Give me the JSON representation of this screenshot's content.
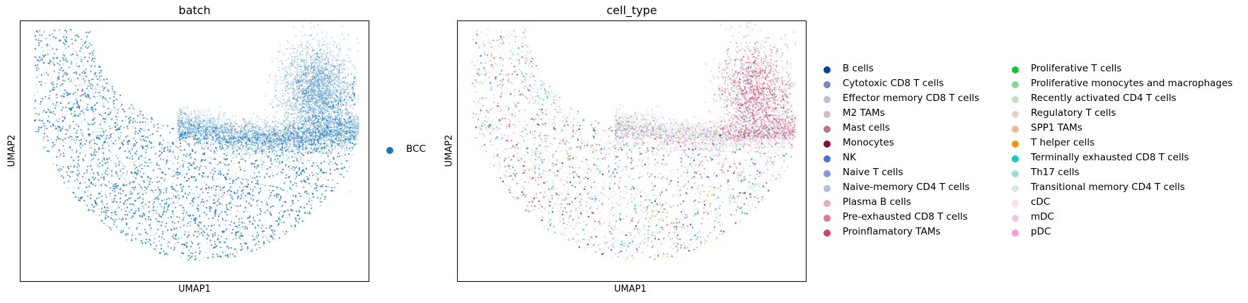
{
  "chart_data": [
    {
      "type": "scatter",
      "title": "batch",
      "xlabel": "UMAP1",
      "ylabel": "UMAP2",
      "legend_placement": "right",
      "series": [
        {
          "name": "BCC",
          "color": "#1f77b4"
        }
      ]
    },
    {
      "type": "scatter",
      "title": "cell_type",
      "xlabel": "UMAP1",
      "ylabel": "UMAP2",
      "legend_placement": "right",
      "series": [
        {
          "name": "B cells",
          "color": "#023fa5"
        },
        {
          "name": "Cytotoxic CD8 T cells",
          "color": "#7d87b9"
        },
        {
          "name": "Effector memory CD8 T cells",
          "color": "#bec1d4"
        },
        {
          "name": "M2 TAMs",
          "color": "#d6bcc0"
        },
        {
          "name": "Mast cells",
          "color": "#bb7784"
        },
        {
          "name": "Monocytes",
          "color": "#8e063b"
        },
        {
          "name": "NK",
          "color": "#4a6fe3"
        },
        {
          "name": "Naive T cells",
          "color": "#8595e1"
        },
        {
          "name": "Naive-memory CD4 T cells",
          "color": "#b5bbe3"
        },
        {
          "name": "Plasma B cells",
          "color": "#e6afb9"
        },
        {
          "name": "Pre-exhausted CD8 T cells",
          "color": "#e07b91"
        },
        {
          "name": "Proinflamatory TAMs",
          "color": "#d33f6a"
        },
        {
          "name": "Proliferative T cells",
          "color": "#11c638"
        },
        {
          "name": "Proliferative monocytes and macrophages",
          "color": "#8dd593"
        },
        {
          "name": "Recently activated CD4 T cells",
          "color": "#c6dec7"
        },
        {
          "name": "Regulatory T cells",
          "color": "#ead3c6"
        },
        {
          "name": "SPP1 TAMs",
          "color": "#f0b98d"
        },
        {
          "name": "T helper cells",
          "color": "#ef9708"
        },
        {
          "name": "Terminally exhausted CD8 T cells",
          "color": "#0fcfc0"
        },
        {
          "name": "Th17 cells",
          "color": "#9cded6"
        },
        {
          "name": "Transitional memory CD4 T cells",
          "color": "#d5eae7"
        },
        {
          "name": "cDC",
          "color": "#f3e1eb"
        },
        {
          "name": "mDC",
          "color": "#f6c4e1"
        },
        {
          "name": "pDC",
          "color": "#f79cd4"
        }
      ]
    }
  ]
}
